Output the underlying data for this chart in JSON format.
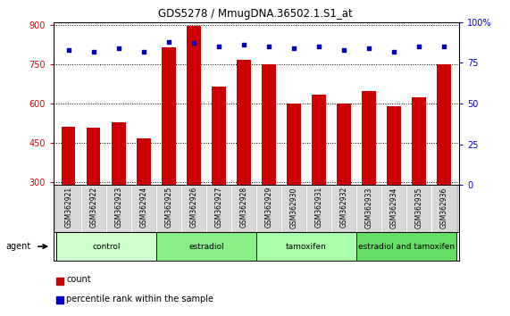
{
  "title": "GDS5278 / MmugDNA.36502.1.S1_at",
  "samples": [
    "GSM362921",
    "GSM362922",
    "GSM362923",
    "GSM362924",
    "GSM362925",
    "GSM362926",
    "GSM362927",
    "GSM362928",
    "GSM362929",
    "GSM362930",
    "GSM362931",
    "GSM362932",
    "GSM362933",
    "GSM362934",
    "GSM362935",
    "GSM362936"
  ],
  "counts": [
    510,
    507,
    527,
    467,
    813,
    895,
    665,
    765,
    750,
    600,
    635,
    600,
    647,
    590,
    622,
    748
  ],
  "percentiles": [
    83,
    82,
    84,
    82,
    88,
    87,
    85,
    86,
    85,
    84,
    85,
    83,
    84,
    82,
    85,
    85
  ],
  "bar_color": "#cc0000",
  "dot_color": "#0000cc",
  "ylim_left": [
    290,
    910
  ],
  "ylim_right": [
    0,
    100
  ],
  "yticks_left": [
    300,
    450,
    600,
    750,
    900
  ],
  "yticks_right": [
    0,
    25,
    50,
    75,
    100
  ],
  "groups": [
    {
      "label": "control",
      "start": 0,
      "end": 4,
      "color": "#ccffcc"
    },
    {
      "label": "estradiol",
      "start": 4,
      "end": 8,
      "color": "#88ee88"
    },
    {
      "label": "tamoxifen",
      "start": 8,
      "end": 12,
      "color": "#aaffaa"
    },
    {
      "label": "estradiol and tamoxifen",
      "start": 12,
      "end": 16,
      "color": "#66dd66"
    }
  ],
  "agent_label": "agent",
  "legend_count_label": "count",
  "legend_percentile_label": "percentile rank within the sample",
  "background_color": "#ffffff",
  "plot_bg_color": "#ffffff",
  "label_area_color": "#c8c8c8"
}
